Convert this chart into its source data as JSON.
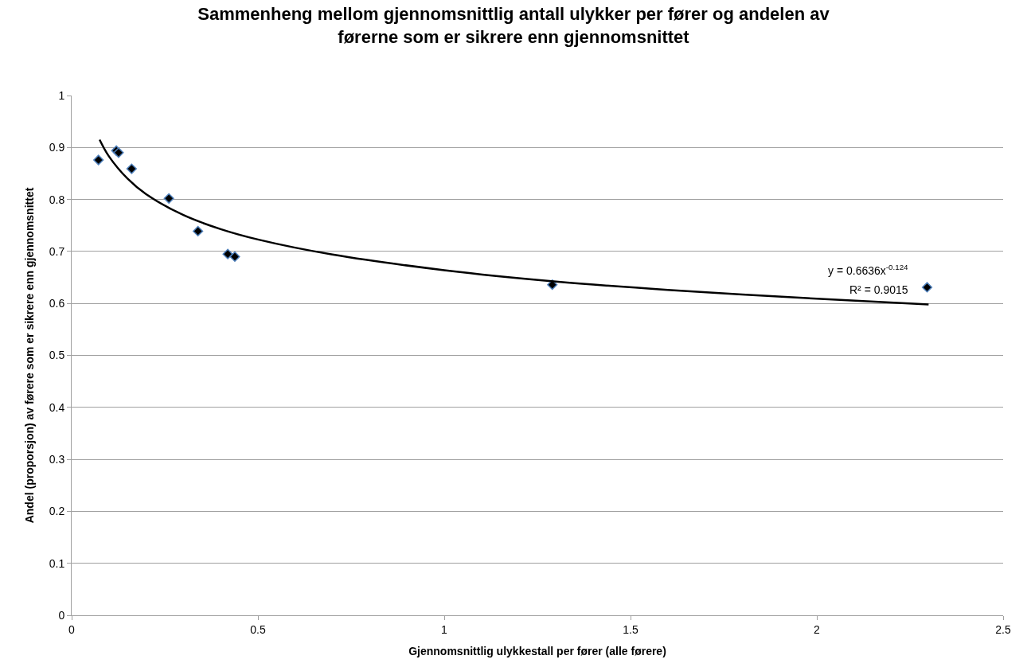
{
  "chart_data": {
    "type": "scatter",
    "title": "Sammenheng mellom gjennomsnittlig antall ulykker per fører og andelen av førerne som er sikrere enn gjennomsnittet",
    "xlabel": "Gjennomsnittlig ulykkestall per fører (alle førere)",
    "ylabel": "Andel (proporsjon) av førere som er sikrere enn gjennomsnittet",
    "xlim": [
      0,
      2.5
    ],
    "xticks": [
      0,
      0.5,
      1,
      1.5,
      2,
      2.5
    ],
    "ylim": [
      0,
      1
    ],
    "yticks": [
      0,
      0.1,
      0.2,
      0.3,
      0.4,
      0.5,
      0.6,
      0.7,
      0.8,
      0.9,
      1
    ],
    "grid": "y",
    "marker": "diamond",
    "annotations": [
      "y = 0.6636x$^{-0.124}$",
      "R² = 0.9015"
    ],
    "series": [
      {
        "color": "#000000",
        "x": [
          0.072,
          0.12,
          0.126,
          0.161,
          0.261,
          0.339,
          0.419,
          0.438,
          1.29,
          2.296
        ],
        "values": [
          0.876,
          0.894,
          0.89,
          0.859,
          0.802,
          0.739,
          0.695,
          0.69,
          0.636,
          0.631
        ]
      },
      {
        "type": "line",
        "marker": "none",
        "color": "#000000",
        "x": [
          0.075,
          0.1,
          0.15,
          0.2,
          0.3,
          0.4,
          0.5,
          0.7,
          1,
          1.3,
          1.6,
          2,
          2.3
        ],
        "values": [
          0.915,
          0.883,
          0.84,
          0.81,
          0.77,
          0.743,
          0.723,
          0.694,
          0.664,
          0.642,
          0.626,
          0.609,
          0.598
        ]
      }
    ]
  }
}
